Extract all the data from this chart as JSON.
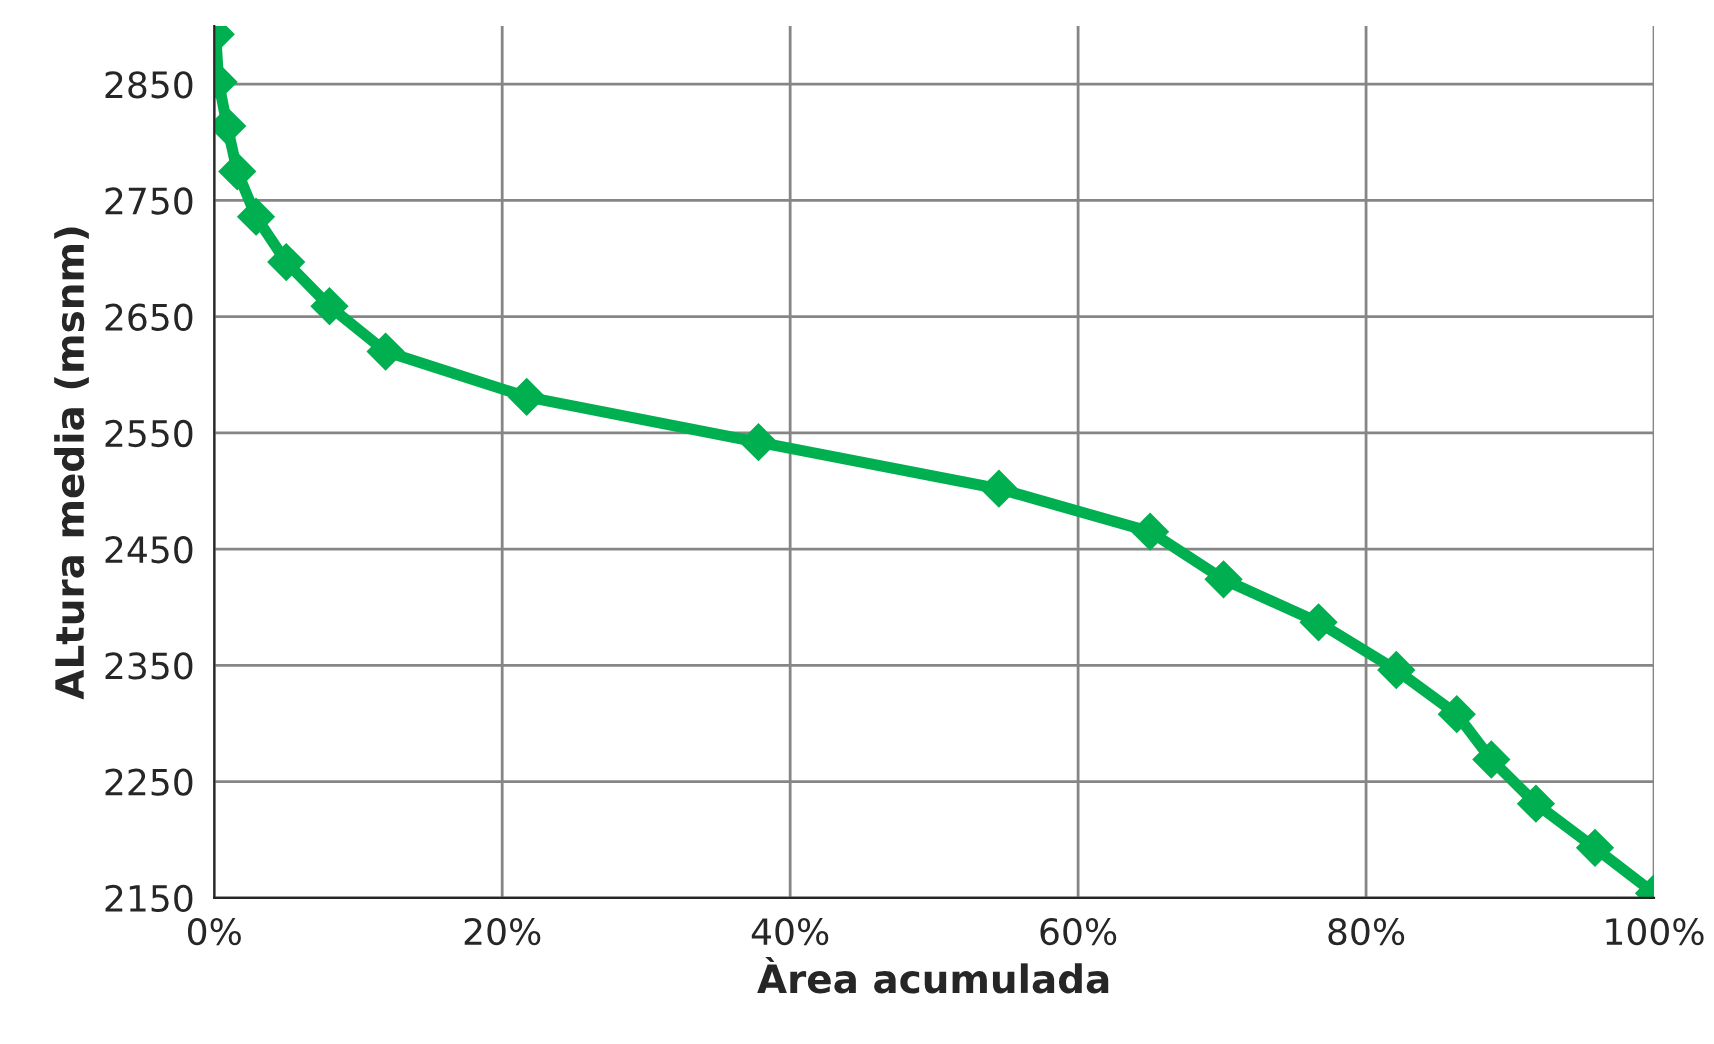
{
  "chart_data": {
    "type": "line",
    "xlabel": "Àrea acumulada",
    "ylabel": "ALtura media (msnm)",
    "x": [
      0.1,
      0.3,
      0.9,
      1.6,
      2.9,
      5.0,
      8.0,
      11.9,
      21.7,
      37.8,
      54.5,
      65.0,
      70.1,
      76.7,
      82.1,
      86.3,
      88.7,
      91.8,
      95.9,
      100
    ],
    "series": [
      {
        "color": "#00b050",
        "values": [
          2893,
          2852,
          2814,
          2775,
          2736,
          2697,
          2659,
          2620,
          2581,
          2542,
          2502,
          2465,
          2424,
          2387,
          2346,
          2308,
          2269,
          2231,
          2193,
          2154
        ]
      }
    ],
    "xlim": [
      0,
      100
    ],
    "xticks": [
      {
        "value": 0,
        "label": "0%"
      },
      {
        "value": 20,
        "label": "20%"
      },
      {
        "value": 40,
        "label": "40%"
      },
      {
        "value": 60,
        "label": "60%"
      },
      {
        "value": 80,
        "label": "80%"
      },
      {
        "value": 100,
        "label": "100%"
      }
    ],
    "ylim": [
      2150,
      2900
    ],
    "yticks": [
      2150,
      2250,
      2350,
      2450,
      2550,
      2650,
      2750,
      2850
    ],
    "grid": true,
    "marker": "diamond",
    "line_style": "solid",
    "legend": false
  }
}
